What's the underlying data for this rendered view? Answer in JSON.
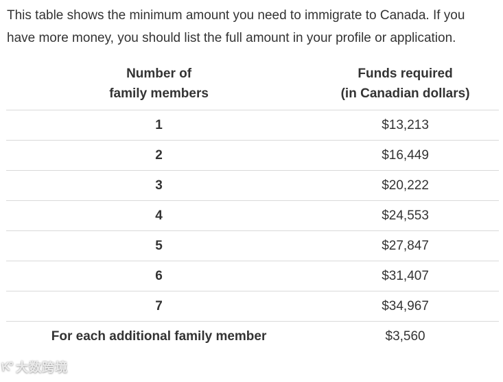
{
  "intro": "This table shows the minimum amount you need to immigrate to Canada. If you have more money, you should list the full amount in your profile or application.",
  "table": {
    "headers": [
      "Number of\nfamily members",
      "Funds required\n(in Canadian dollars)"
    ],
    "rows": [
      {
        "members": "1",
        "funds": "$13,213"
      },
      {
        "members": "2",
        "funds": "$16,449"
      },
      {
        "members": "3",
        "funds": "$20,222"
      },
      {
        "members": "4",
        "funds": "$24,553"
      },
      {
        "members": "5",
        "funds": "$27,847"
      },
      {
        "members": "6",
        "funds": "$31,407"
      },
      {
        "members": "7",
        "funds": "$34,967"
      },
      {
        "members": "For each additional family member",
        "funds": "$3,560"
      }
    ]
  },
  "watermark": {
    "icon_glyph": "K°",
    "text": "大数跨境"
  },
  "colors": {
    "text": "#333333",
    "divider": "#d9d9d9",
    "background": "#ffffff"
  }
}
